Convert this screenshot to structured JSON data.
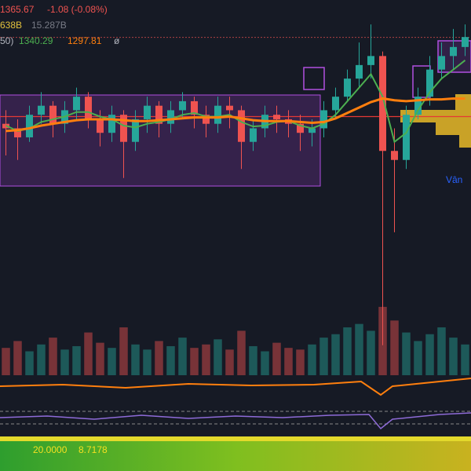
{
  "header": {
    "change": "-1.08 (-0.08%)",
    "vol1": "638B",
    "vol2": "15.287B",
    "ma_label": "50)",
    "symbol_end": "ø",
    "side_text": "Vân",
    "bottom": [
      "20.0000",
      "8.7178"
    ]
  },
  "chart_data": {
    "type": "candlestick",
    "open": [
      1270,
      1265,
      1255,
      1280,
      1290,
      1270,
      1285,
      1300,
      1275,
      1260,
      1280,
      1250,
      1275,
      1290,
      1270,
      1285,
      1295,
      1280,
      1270,
      1290,
      1285,
      1250,
      1265,
      1280,
      1275,
      1270,
      1260,
      1265,
      1285,
      1300,
      1320,
      1335,
      1345,
      1240,
      1230,
      1280,
      1300,
      1330,
      1345,
      1355
    ],
    "high": [
      1285,
      1275,
      1290,
      1305,
      1295,
      1295,
      1310,
      1305,
      1285,
      1290,
      1285,
      1285,
      1300,
      1295,
      1295,
      1305,
      1300,
      1290,
      1300,
      1300,
      1290,
      1275,
      1290,
      1290,
      1285,
      1280,
      1275,
      1295,
      1310,
      1330,
      1360,
      1380,
      1350,
      1265,
      1290,
      1310,
      1345,
      1360,
      1375,
      1380
    ],
    "low": [
      1235,
      1230,
      1250,
      1270,
      1255,
      1260,
      1275,
      1265,
      1245,
      1250,
      1210,
      1240,
      1260,
      1255,
      1260,
      1275,
      1265,
      1255,
      1260,
      1265,
      1220,
      1240,
      1255,
      1260,
      1255,
      1240,
      1245,
      1255,
      1275,
      1295,
      1310,
      1320,
      1025,
      1150,
      1220,
      1275,
      1290,
      1320,
      1330,
      1345
    ],
    "close": [
      1265,
      1255,
      1280,
      1290,
      1270,
      1285,
      1300,
      1275,
      1260,
      1280,
      1250,
      1275,
      1290,
      1270,
      1285,
      1295,
      1280,
      1270,
      1290,
      1285,
      1250,
      1265,
      1280,
      1275,
      1270,
      1260,
      1265,
      1285,
      1300,
      1320,
      1335,
      1345,
      1240,
      1230,
      1280,
      1300,
      1330,
      1345,
      1355,
      1366
    ],
    "up_color": "#26a69a",
    "down_color": "#ef5350",
    "ylim": [
      990,
      1407
    ],
    "last": 1365.67,
    "hline": 1278,
    "ma": [
      {
        "color": "#4caf50",
        "values": [
          1268,
          1262,
          1265,
          1272,
          1275,
          1278,
          1283,
          1283,
          1278,
          1275,
          1268,
          1266,
          1270,
          1272,
          1275,
          1280,
          1282,
          1278,
          1278,
          1280,
          1272,
          1267,
          1268,
          1272,
          1273,
          1268,
          1265,
          1270,
          1280,
          1295,
          1310,
          1325,
          1300,
          1250,
          1260,
          1285,
          1305,
          1320,
          1330,
          1340.29
        ]
      },
      {
        "color": "#ff7f0e",
        "values": [
          1262,
          1263,
          1265,
          1268,
          1270,
          1272,
          1274,
          1275,
          1275,
          1275,
          1274,
          1273,
          1273,
          1274,
          1275,
          1276,
          1277,
          1277,
          1277,
          1278,
          1276,
          1274,
          1273,
          1273,
          1273,
          1272,
          1271,
          1272,
          1276,
          1282,
          1288,
          1294,
          1298,
          1296,
          1295,
          1296,
          1297,
          1297,
          1298,
          1297.81
        ]
      }
    ],
    "volume": {
      "values": [
        16,
        20,
        14,
        18,
        22,
        15,
        17,
        25,
        19,
        16,
        28,
        18,
        15,
        20,
        17,
        22,
        16,
        18,
        21,
        15,
        26,
        17,
        14,
        19,
        16,
        15,
        18,
        22,
        24,
        28,
        30,
        26,
        40,
        32,
        25,
        20,
        24,
        28,
        22,
        18
      ],
      "ylim": [
        0,
        45
      ]
    }
  }
}
